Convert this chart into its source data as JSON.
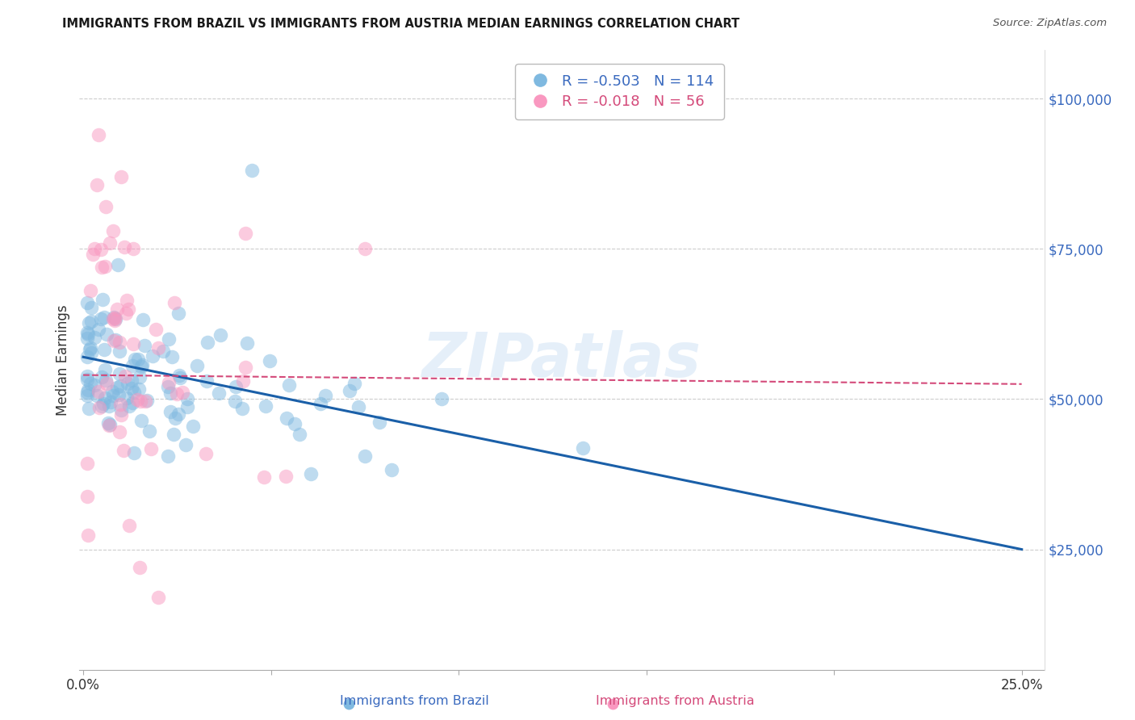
{
  "title": "IMMIGRANTS FROM BRAZIL VS IMMIGRANTS FROM AUSTRIA MEDIAN EARNINGS CORRELATION CHART",
  "source": "Source: ZipAtlas.com",
  "ylabel": "Median Earnings",
  "y_ticks": [
    25000,
    50000,
    75000,
    100000
  ],
  "y_tick_labels": [
    "$25,000",
    "$50,000",
    "$75,000",
    "$100,000"
  ],
  "y_min": 5000,
  "y_max": 108000,
  "x_min": -0.001,
  "x_max": 0.256,
  "brazil_R": "-0.503",
  "brazil_N": "114",
  "austria_R": "-0.018",
  "austria_N": "56",
  "brazil_color": "#7fb9e0",
  "austria_color": "#f998c0",
  "brazil_line_color": "#1a5fa8",
  "austria_line_color": "#d44a7a",
  "watermark": "ZIPatlas",
  "brazil_line_x0": 0.0,
  "brazil_line_y0": 57000,
  "brazil_line_x1": 0.25,
  "brazil_line_y1": 25000,
  "austria_line_x0": 0.0,
  "austria_line_y0": 54000,
  "austria_line_x1": 0.25,
  "austria_line_y1": 52500,
  "brazil_seed": 12,
  "austria_seed": 7
}
